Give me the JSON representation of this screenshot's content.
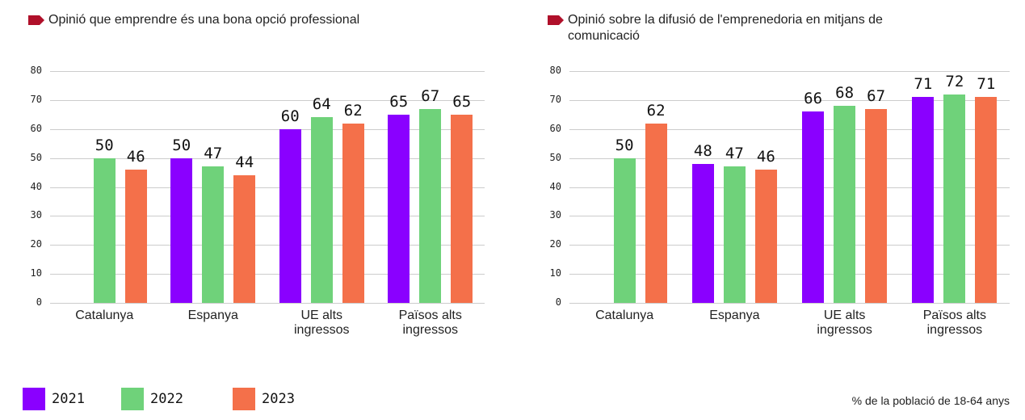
{
  "chart_data": [
    {
      "type": "bar",
      "title": "Opinió que emprendre és una bona opció professional",
      "categories": [
        "Catalunya",
        "Espanya",
        "UE alts ingressos",
        "Països alts ingressos"
      ],
      "series": [
        {
          "values": [
            null,
            50,
            60,
            65
          ]
        },
        {
          "values": [
            50,
            47,
            64,
            67
          ]
        },
        {
          "values": [
            46,
            44,
            62,
            65
          ]
        }
      ],
      "ylim": [
        0,
        80
      ],
      "yticks": [
        0,
        10,
        20,
        30,
        40,
        50,
        60,
        70,
        80
      ],
      "grid": true
    },
    {
      "type": "bar",
      "title": "Opinió sobre la difusió de l'emprenedoria en mitjans de comunicació",
      "categories": [
        "Catalunya",
        "Espanya",
        "UE alts ingressos",
        "Països alts ingressos"
      ],
      "series": [
        {
          "values": [
            null,
            48,
            66,
            71
          ]
        },
        {
          "values": [
            50,
            47,
            68,
            72
          ]
        },
        {
          "values": [
            62,
            46,
            67,
            71
          ]
        }
      ],
      "ylim": [
        0,
        80
      ],
      "yticks": [
        0,
        10,
        20,
        30,
        40,
        50,
        60,
        70,
        80
      ],
      "grid": true
    }
  ],
  "legend": [
    {
      "name": "2021",
      "color": "#8a00ff"
    },
    {
      "name": "2022",
      "color": "#6fd27a"
    },
    {
      "name": "2023",
      "color": "#f4704a"
    }
  ],
  "note": "% de la població de 18-64 anys"
}
